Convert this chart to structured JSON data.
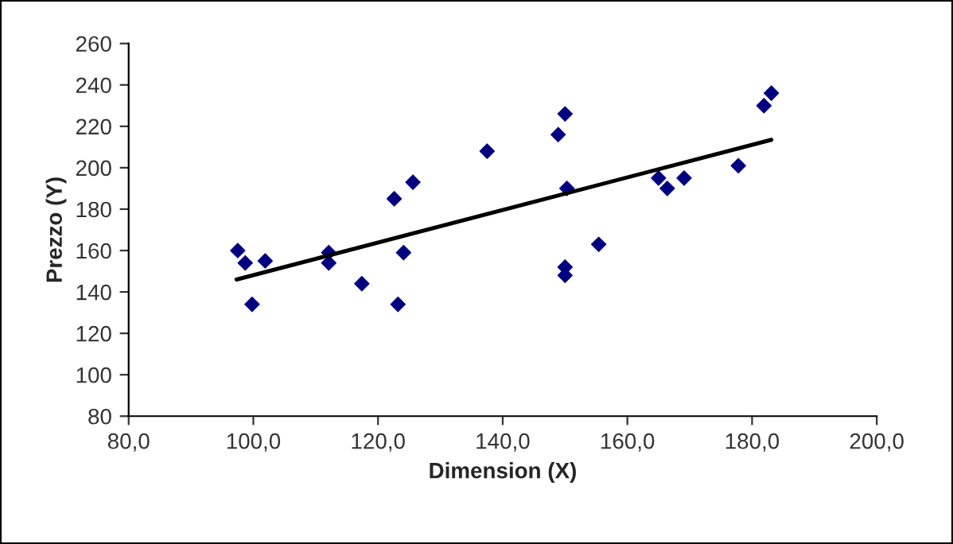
{
  "chart_data": {
    "type": "scatter",
    "xlabel": "Dimension (X)",
    "ylabel": "Prezzo (Y)",
    "xlim": [
      80,
      200
    ],
    "xticks": [
      {
        "value": 80,
        "label": "80,0"
      },
      {
        "value": 100,
        "label": "100,0"
      },
      {
        "value": 120,
        "label": "120,0"
      },
      {
        "value": 140,
        "label": "140,0"
      },
      {
        "value": 160,
        "label": "160,0"
      },
      {
        "value": 180,
        "label": "180,0"
      },
      {
        "value": 200,
        "label": "200,0"
      }
    ],
    "ylim": [
      80,
      260
    ],
    "yticks": [
      80,
      100,
      120,
      140,
      160,
      180,
      200,
      220,
      240,
      260
    ],
    "grid": false,
    "legend": false,
    "series": [
      {
        "color": "#000080",
        "marker": "diamond",
        "x": [
          97.5,
          98.7,
          99.8,
          101.9,
          112.1,
          112.1,
          117.4,
          122.6,
          123.2,
          124.1,
          125.6,
          137.5,
          148.9,
          150.0,
          150.3,
          150.0,
          150.0,
          155.4,
          165.0,
          166.4,
          169.1,
          177.8,
          181.9,
          183.1
        ],
        "values": [
          160,
          154,
          134,
          155,
          159,
          154,
          144,
          185,
          134,
          159,
          193,
          208,
          216,
          226,
          190,
          152,
          148,
          163,
          195,
          190,
          195,
          201,
          230,
          236
        ]
      },
      {
        "type": "line",
        "color": "#000000",
        "line_style": "solid",
        "x": [
          97.3,
          183.1
        ],
        "values": [
          146,
          213.5
        ]
      }
    ]
  }
}
